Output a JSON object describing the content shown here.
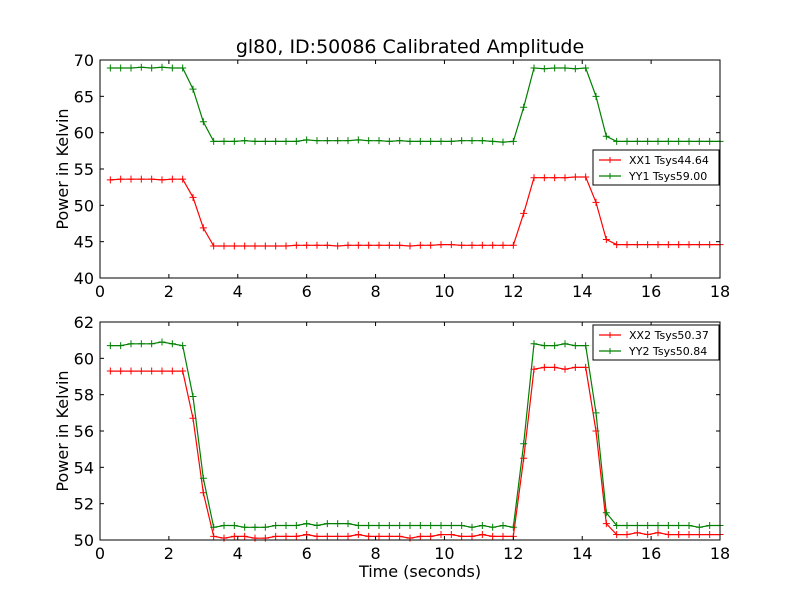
{
  "title": "gl80, ID:50086 Calibrated Amplitude",
  "chart_data": [
    {
      "type": "line",
      "ylabel": "Power in Kelvin",
      "xlabel": "",
      "xlim": [
        0,
        18
      ],
      "ylim": [
        40,
        70
      ],
      "xticks": [
        0,
        2,
        4,
        6,
        8,
        10,
        12,
        14,
        16,
        18
      ],
      "yticks": [
        40,
        45,
        50,
        55,
        60,
        65,
        70
      ],
      "grid": false,
      "legend_position": "right",
      "marker": "+",
      "x": [
        0.3,
        0.6,
        0.9,
        1.2,
        1.5,
        1.8,
        2.1,
        2.4,
        2.7,
        3.0,
        3.3,
        3.6,
        3.9,
        4.2,
        4.5,
        4.8,
        5.1,
        5.4,
        5.7,
        6.0,
        6.3,
        6.6,
        6.9,
        7.2,
        7.5,
        7.8,
        8.1,
        8.4,
        8.7,
        9.0,
        9.3,
        9.6,
        9.9,
        10.2,
        10.5,
        10.8,
        11.1,
        11.4,
        11.7,
        12.0,
        12.3,
        12.6,
        12.9,
        13.2,
        13.5,
        13.8,
        14.1,
        14.4,
        14.7,
        15.0,
        15.3,
        15.6,
        15.9,
        16.2,
        16.5,
        16.8,
        17.1,
        17.4,
        17.7,
        18.0
      ],
      "series": [
        {
          "name": "XX1 Tsys44.64",
          "color": "#ff0000",
          "values": [
            53.5,
            53.6,
            53.6,
            53.6,
            53.6,
            53.5,
            53.6,
            53.6,
            51.1,
            46.9,
            44.4,
            44.4,
            44.4,
            44.4,
            44.4,
            44.4,
            44.4,
            44.4,
            44.5,
            44.5,
            44.5,
            44.5,
            44.4,
            44.5,
            44.5,
            44.5,
            44.5,
            44.5,
            44.5,
            44.4,
            44.5,
            44.5,
            44.6,
            44.6,
            44.5,
            44.5,
            44.5,
            44.5,
            44.5,
            44.5,
            48.9,
            53.8,
            53.8,
            53.8,
            53.8,
            53.9,
            53.9,
            50.4,
            45.3,
            44.6,
            44.6,
            44.6,
            44.6,
            44.6,
            44.6,
            44.6,
            44.6,
            44.6,
            44.6,
            44.6
          ]
        },
        {
          "name": "YY1 Tsys59.00",
          "color": "#008000",
          "values": [
            68.9,
            68.9,
            68.9,
            69.0,
            68.9,
            69.0,
            68.9,
            68.9,
            66.0,
            61.5,
            58.8,
            58.8,
            58.8,
            58.9,
            58.8,
            58.8,
            58.8,
            58.8,
            58.8,
            59.0,
            58.9,
            58.9,
            58.9,
            58.9,
            59.0,
            58.9,
            58.9,
            58.8,
            58.9,
            58.8,
            58.8,
            58.8,
            58.8,
            58.8,
            58.9,
            58.9,
            58.9,
            58.8,
            58.7,
            58.8,
            63.5,
            68.9,
            68.8,
            68.9,
            68.9,
            68.8,
            68.9,
            65.0,
            59.5,
            58.8,
            58.8,
            58.8,
            58.8,
            58.8,
            58.8,
            58.8,
            58.8,
            58.8,
            58.8,
            58.8
          ]
        }
      ]
    },
    {
      "type": "line",
      "ylabel": "Power in Kelvin",
      "xlabel": "Time (seconds)",
      "xlim": [
        0,
        18
      ],
      "ylim": [
        50,
        62
      ],
      "xticks": [
        0,
        2,
        4,
        6,
        8,
        10,
        12,
        14,
        16,
        18
      ],
      "yticks": [
        50,
        52,
        54,
        56,
        58,
        60,
        62
      ],
      "grid": false,
      "legend_position": "top-right",
      "marker": "+",
      "x": [
        0.3,
        0.6,
        0.9,
        1.2,
        1.5,
        1.8,
        2.1,
        2.4,
        2.7,
        3.0,
        3.3,
        3.6,
        3.9,
        4.2,
        4.5,
        4.8,
        5.1,
        5.4,
        5.7,
        6.0,
        6.3,
        6.6,
        6.9,
        7.2,
        7.5,
        7.8,
        8.1,
        8.4,
        8.7,
        9.0,
        9.3,
        9.6,
        9.9,
        10.2,
        10.5,
        10.8,
        11.1,
        11.4,
        11.7,
        12.0,
        12.3,
        12.6,
        12.9,
        13.2,
        13.5,
        13.8,
        14.1,
        14.4,
        14.7,
        15.0,
        15.3,
        15.6,
        15.9,
        16.2,
        16.5,
        16.8,
        17.1,
        17.4,
        17.7,
        18.0
      ],
      "series": [
        {
          "name": "XX2 Tsys50.37",
          "color": "#ff0000",
          "values": [
            59.3,
            59.3,
            59.3,
            59.3,
            59.3,
            59.3,
            59.3,
            59.3,
            56.7,
            52.6,
            50.2,
            50.1,
            50.2,
            50.2,
            50.1,
            50.1,
            50.2,
            50.2,
            50.2,
            50.3,
            50.2,
            50.2,
            50.2,
            50.2,
            50.3,
            50.2,
            50.2,
            50.2,
            50.2,
            50.1,
            50.2,
            50.2,
            50.3,
            50.3,
            50.2,
            50.2,
            50.3,
            50.2,
            50.2,
            50.2,
            54.5,
            59.4,
            59.5,
            59.5,
            59.4,
            59.5,
            59.5,
            56.0,
            50.9,
            50.3,
            50.3,
            50.4,
            50.3,
            50.4,
            50.3,
            50.3,
            50.3,
            50.3,
            50.3,
            50.3
          ]
        },
        {
          "name": "YY2 Tsys50.84",
          "color": "#008000",
          "values": [
            60.7,
            60.7,
            60.8,
            60.8,
            60.8,
            60.9,
            60.8,
            60.7,
            57.9,
            53.4,
            50.7,
            50.8,
            50.8,
            50.7,
            50.7,
            50.7,
            50.8,
            50.8,
            50.8,
            50.9,
            50.8,
            50.9,
            50.9,
            50.9,
            50.8,
            50.8,
            50.8,
            50.8,
            50.8,
            50.8,
            50.8,
            50.8,
            50.8,
            50.8,
            50.8,
            50.7,
            50.8,
            50.7,
            50.8,
            50.7,
            55.3,
            60.8,
            60.7,
            60.7,
            60.8,
            60.7,
            60.7,
            57.0,
            51.5,
            50.8,
            50.8,
            50.8,
            50.8,
            50.8,
            50.8,
            50.8,
            50.8,
            50.7,
            50.8,
            50.8
          ]
        }
      ]
    }
  ]
}
